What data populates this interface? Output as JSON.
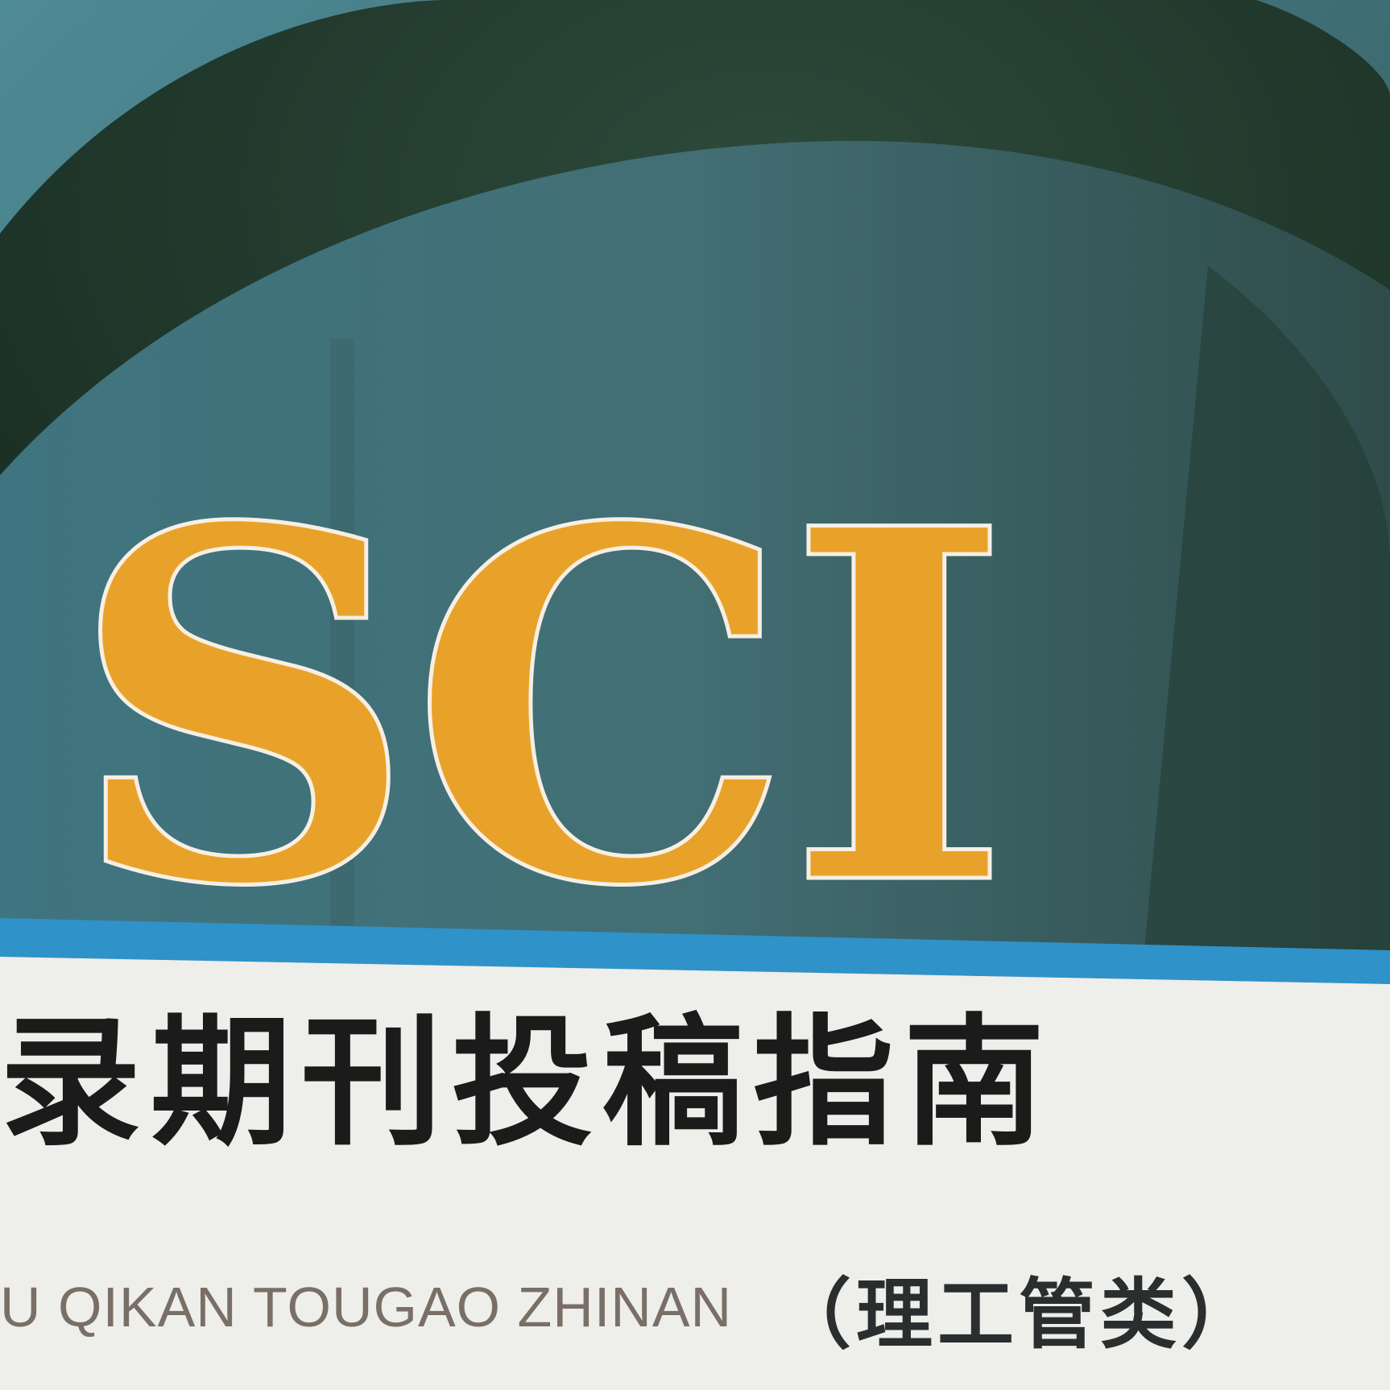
{
  "cover": {
    "logo_text": "SCI",
    "title_cn": "录期刊投稿指南",
    "subtitle_pinyin": "U QIKAN TOUGAO ZHINAN",
    "category": "（理工管类）"
  },
  "colors": {
    "background_teal": "#3f6b72",
    "dark_arch": "#1e3a2c",
    "light_arch": "#4e7f8a",
    "blue_band": "#2f92c9",
    "white_panel": "#eeeeea",
    "logo_orange": "#e8a22a",
    "title_black": "#1b1b1b",
    "pinyin_gray": "#7a6f66"
  }
}
